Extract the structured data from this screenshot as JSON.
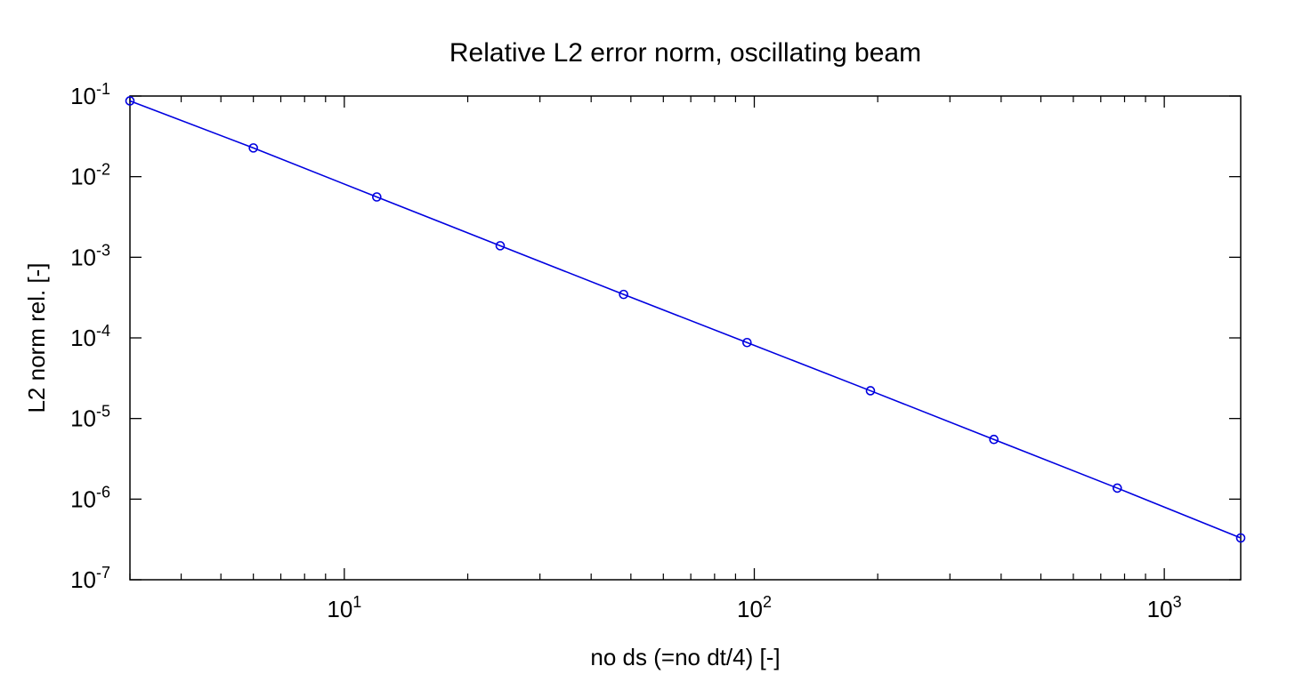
{
  "chart_data": {
    "type": "line",
    "title": "Relative L2 error norm, oscillating beam",
    "xlabel": "no ds (=no dt/4) [-]",
    "ylabel": "L2 norm rel. [-]",
    "xscale": "log",
    "yscale": "log",
    "xlim": [
      3,
      1536
    ],
    "ylim": [
      1e-07,
      0.1
    ],
    "grid": false,
    "x_ticks": [
      {
        "base": "10",
        "exp": "1",
        "value": 10
      },
      {
        "base": "10",
        "exp": "2",
        "value": 100
      },
      {
        "base": "10",
        "exp": "3",
        "value": 1000
      }
    ],
    "y_ticks": [
      {
        "base": "10",
        "exp": "-1",
        "value": 0.1
      },
      {
        "base": "10",
        "exp": "-2",
        "value": 0.01
      },
      {
        "base": "10",
        "exp": "-3",
        "value": 0.001
      },
      {
        "base": "10",
        "exp": "-4",
        "value": 0.0001
      },
      {
        "base": "10",
        "exp": "-5",
        "value": 1e-05
      },
      {
        "base": "10",
        "exp": "-6",
        "value": 1e-06
      },
      {
        "base": "10",
        "exp": "-7",
        "value": 1e-07
      }
    ],
    "series": [
      {
        "color": "#0000e0",
        "marker": "circle",
        "x": [
          3,
          6,
          12,
          24,
          48,
          96,
          192,
          384,
          768,
          1536
        ],
        "y": [
          0.087,
          0.0227,
          0.0056,
          0.00139,
          0.000346,
          8.75e-05,
          2.21e-05,
          5.5e-06,
          1.37e-06,
          3.3e-07
        ]
      }
    ]
  }
}
